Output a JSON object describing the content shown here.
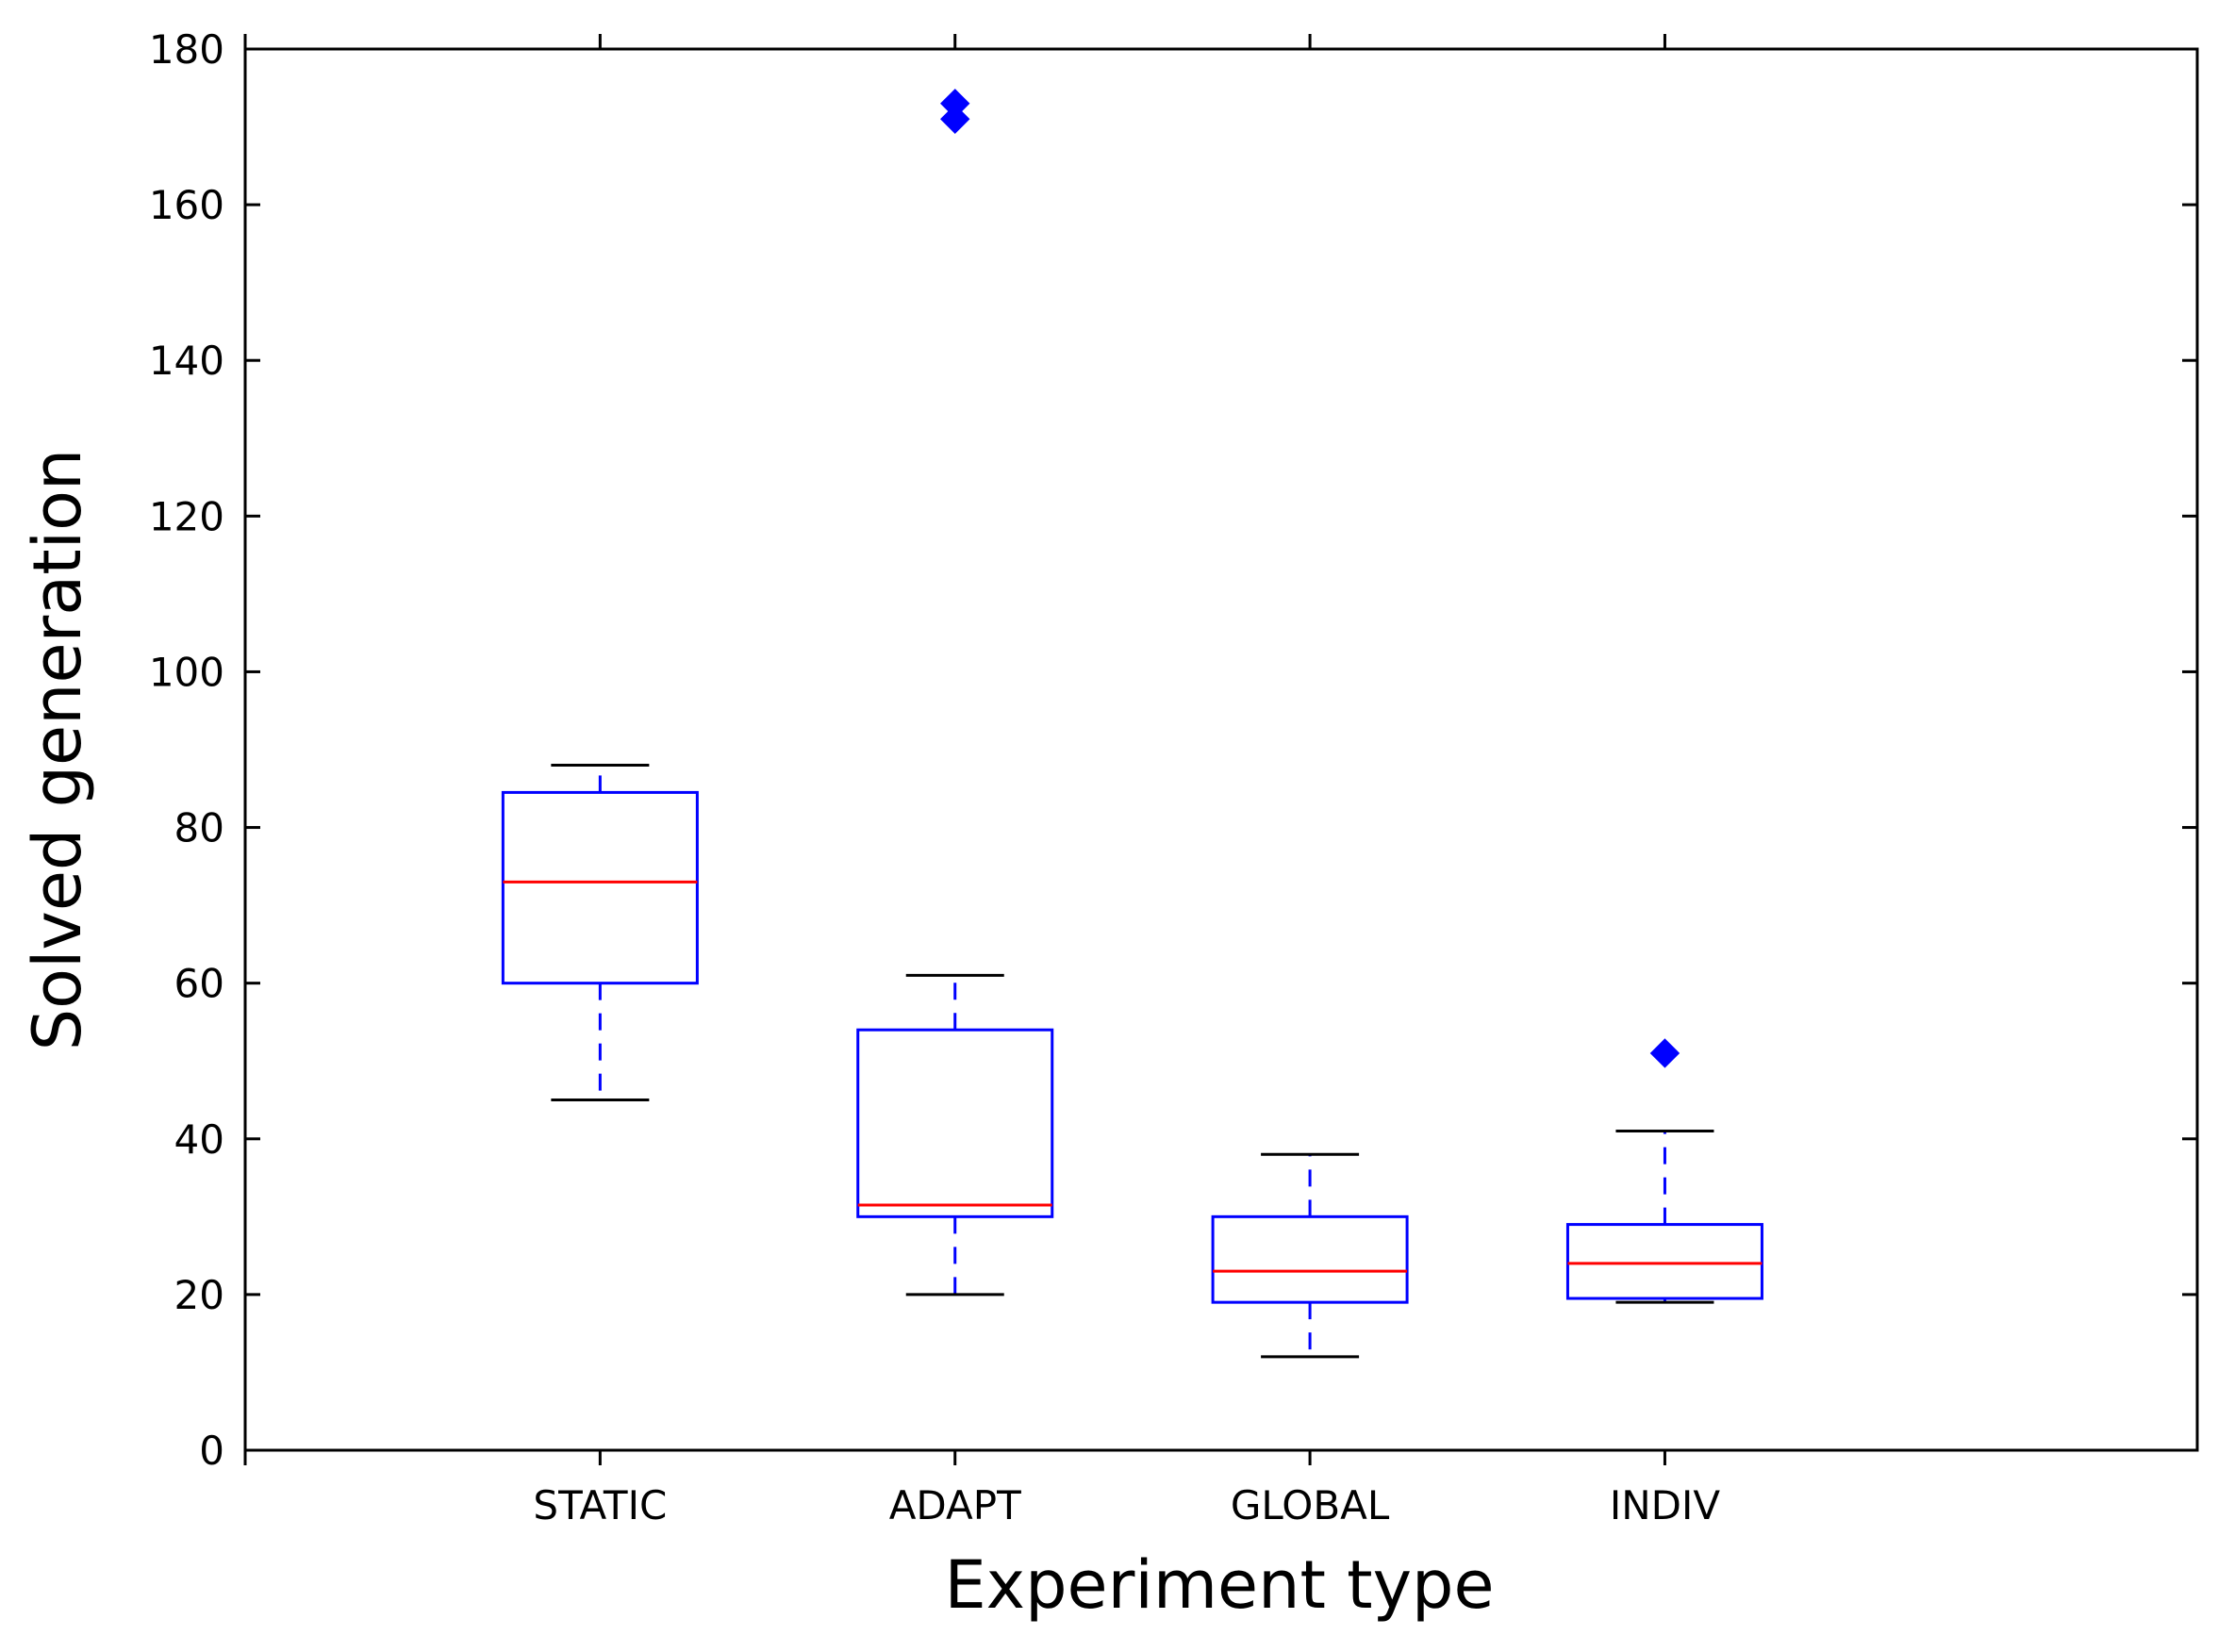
{
  "chart_data": {
    "type": "box",
    "title": "",
    "xlabel": "Experiment type",
    "ylabel": "Solved generation",
    "ylim": [
      0,
      180
    ],
    "yticks": [
      0,
      20,
      40,
      60,
      80,
      100,
      120,
      140,
      160,
      180
    ],
    "ytick_labels": [
      "0",
      "20",
      "40",
      "60",
      "80",
      "100",
      "120",
      "140",
      "160",
      "180"
    ],
    "categories": [
      "STATIC",
      "ADAPT",
      "GLOBAL",
      "INDIV"
    ],
    "boxes": [
      {
        "name": "STATIC",
        "whisker_low": 45,
        "q1": 60,
        "median": 73,
        "q3": 84.5,
        "whisker_high": 88,
        "outliers": []
      },
      {
        "name": "ADAPT",
        "whisker_low": 20,
        "q1": 30,
        "median": 31.5,
        "q3": 54,
        "whisker_high": 61,
        "outliers": [
          171,
          173
        ]
      },
      {
        "name": "GLOBAL",
        "whisker_low": 12,
        "q1": 19,
        "median": 23,
        "q3": 30,
        "whisker_high": 38,
        "outliers": []
      },
      {
        "name": "INDIV",
        "whisker_low": 19,
        "q1": 19.5,
        "median": 24,
        "q3": 29,
        "whisker_high": 41,
        "outliers": [
          51
        ]
      }
    ],
    "colors": {
      "box": "#0000ff",
      "median": "#ff0000",
      "whisker_cap": "#000000",
      "outlier": "#0000ff",
      "axis": "#000000"
    }
  }
}
